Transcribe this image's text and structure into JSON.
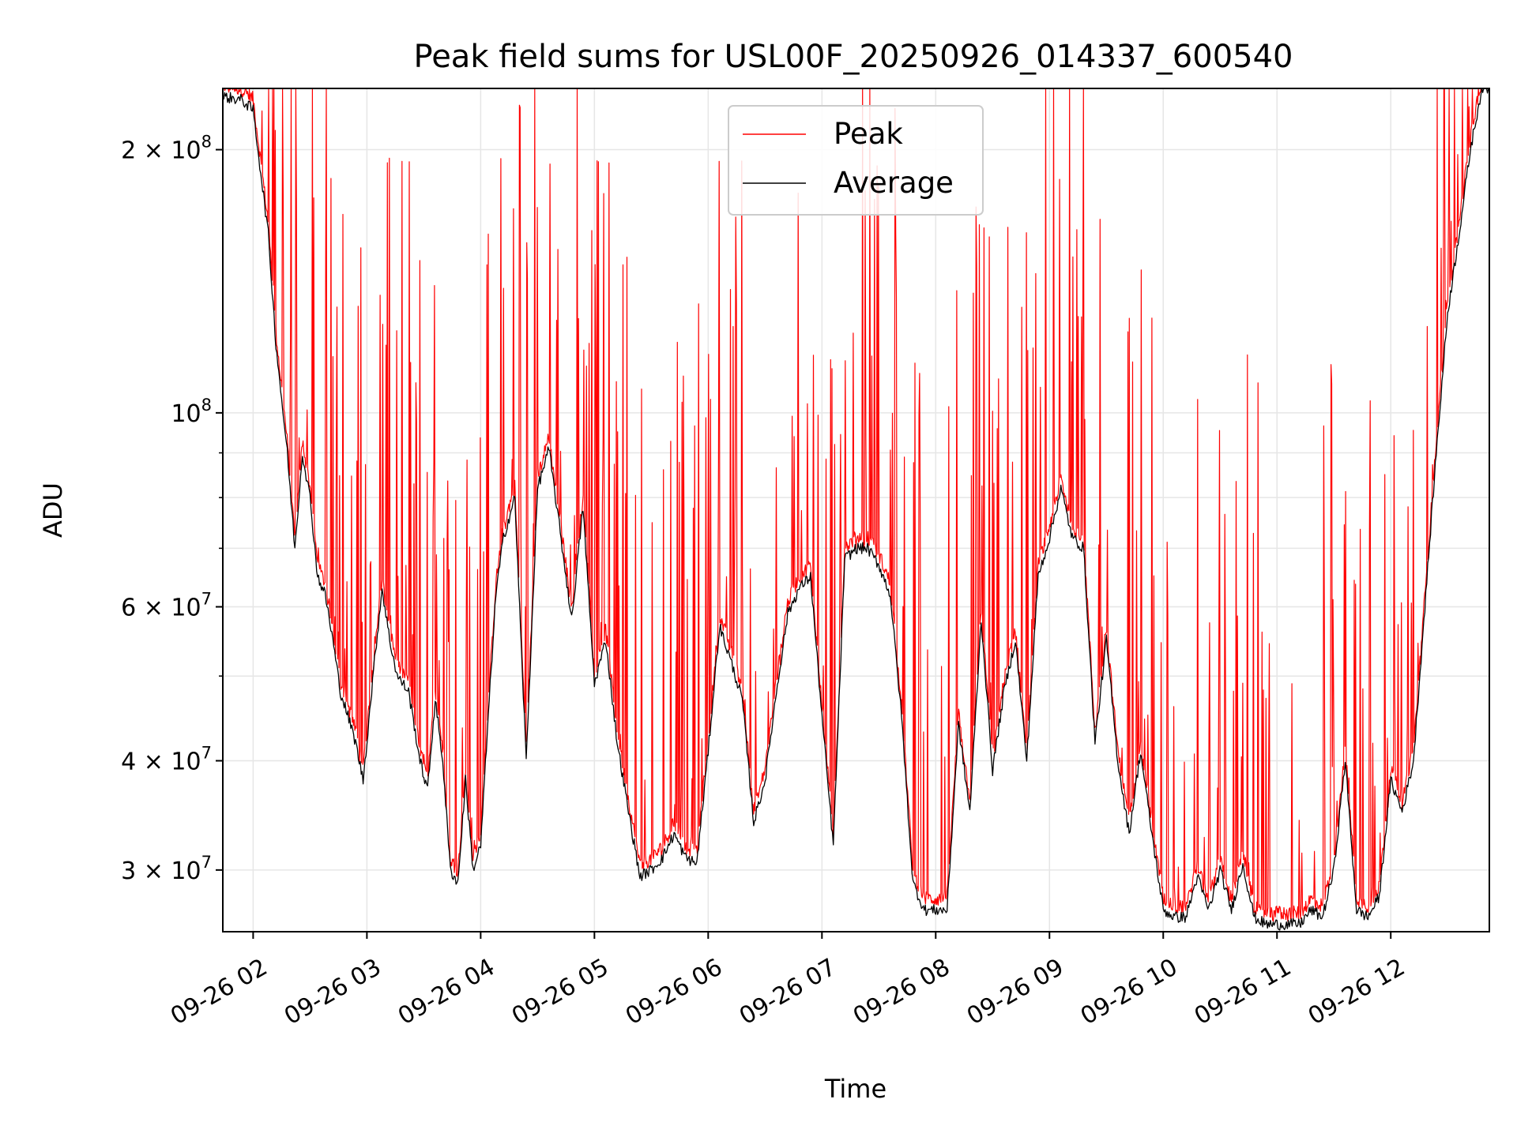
{
  "chart_data": {
    "type": "line",
    "title": "Peak field sums for USL00F_20250926_014337_600540",
    "xlabel": "Time",
    "ylabel": "ADU",
    "y_scale": "log",
    "xlim": [
      "2025-09-26 01:44",
      "2025-09-26 12:52"
    ],
    "ylim": [
      25500000,
      235000000
    ],
    "grid": true,
    "legend_position": "upper center",
    "x_ticks": [
      {
        "value": "2025-09-26 02:00",
        "label": "09-26 02"
      },
      {
        "value": "2025-09-26 03:00",
        "label": "09-26 03"
      },
      {
        "value": "2025-09-26 04:00",
        "label": "09-26 04"
      },
      {
        "value": "2025-09-26 05:00",
        "label": "09-26 05"
      },
      {
        "value": "2025-09-26 06:00",
        "label": "09-26 06"
      },
      {
        "value": "2025-09-26 07:00",
        "label": "09-26 07"
      },
      {
        "value": "2025-09-26 08:00",
        "label": "09-26 08"
      },
      {
        "value": "2025-09-26 09:00",
        "label": "09-26 09"
      },
      {
        "value": "2025-09-26 10:00",
        "label": "09-26 10"
      },
      {
        "value": "2025-09-26 11:00",
        "label": "09-26 11"
      },
      {
        "value": "2025-09-26 12:00",
        "label": "09-26 12"
      }
    ],
    "y_ticks": [
      {
        "value": 200000000,
        "base": "2 × 10",
        "exp": "8"
      },
      {
        "value": 100000000,
        "base": "10",
        "exp": "8"
      },
      {
        "value": 60000000,
        "base": "6 × 10",
        "exp": "7"
      },
      {
        "value": 40000000,
        "base": "4 × 10",
        "exp": "7"
      },
      {
        "value": 30000000,
        "base": "3 × 10",
        "exp": "7"
      }
    ],
    "y_minor_ticks": [
      50000000,
      70000000,
      80000000,
      90000000
    ],
    "series": [
      {
        "name": "Peak",
        "color": "#ff0000",
        "note": "spiky series; baseline tracks Average with frequent spikes up to ~2.3e8"
      },
      {
        "name": "Average",
        "color": "#000000",
        "x": [
          "2025-09-26 01:44",
          "2025-09-26 01:54",
          "2025-09-26 02:00",
          "2025-09-26 02:08",
          "2025-09-26 02:12",
          "2025-09-26 02:18",
          "2025-09-26 02:22",
          "2025-09-26 02:26",
          "2025-09-26 02:30",
          "2025-09-26 02:34",
          "2025-09-26 02:38",
          "2025-09-26 02:42",
          "2025-09-26 02:46",
          "2025-09-26 02:50",
          "2025-09-26 02:54",
          "2025-09-26 02:58",
          "2025-09-26 03:04",
          "2025-09-26 03:08",
          "2025-09-26 03:12",
          "2025-09-26 03:16",
          "2025-09-26 03:22",
          "2025-09-26 03:28",
          "2025-09-26 03:32",
          "2025-09-26 03:36",
          "2025-09-26 03:40",
          "2025-09-26 03:44",
          "2025-09-26 03:48",
          "2025-09-26 03:52",
          "2025-09-26 03:56",
          "2025-09-26 04:00",
          "2025-09-26 04:04",
          "2025-09-26 04:08",
          "2025-09-26 04:12",
          "2025-09-26 04:18",
          "2025-09-26 04:24",
          "2025-09-26 04:30",
          "2025-09-26 04:36",
          "2025-09-26 04:42",
          "2025-09-26 04:48",
          "2025-09-26 04:54",
          "2025-09-26 05:00",
          "2025-09-26 05:06",
          "2025-09-26 05:12",
          "2025-09-26 05:18",
          "2025-09-26 05:24",
          "2025-09-26 05:30",
          "2025-09-26 05:36",
          "2025-09-26 05:42",
          "2025-09-26 05:48",
          "2025-09-26 05:54",
          "2025-09-26 06:00",
          "2025-09-26 06:06",
          "2025-09-26 06:12",
          "2025-09-26 06:18",
          "2025-09-26 06:24",
          "2025-09-26 06:30",
          "2025-09-26 06:36",
          "2025-09-26 06:42",
          "2025-09-26 06:48",
          "2025-09-26 06:54",
          "2025-09-26 07:00",
          "2025-09-26 07:06",
          "2025-09-26 07:12",
          "2025-09-26 07:18",
          "2025-09-26 07:24",
          "2025-09-26 07:30",
          "2025-09-26 07:36",
          "2025-09-26 07:42",
          "2025-09-26 07:48",
          "2025-09-26 07:54",
          "2025-09-26 08:00",
          "2025-09-26 08:06",
          "2025-09-26 08:12",
          "2025-09-26 08:18",
          "2025-09-26 08:24",
          "2025-09-26 08:30",
          "2025-09-26 08:36",
          "2025-09-26 08:42",
          "2025-09-26 08:48",
          "2025-09-26 08:54",
          "2025-09-26 09:00",
          "2025-09-26 09:06",
          "2025-09-26 09:12",
          "2025-09-26 09:18",
          "2025-09-26 09:24",
          "2025-09-26 09:30",
          "2025-09-26 09:36",
          "2025-09-26 09:42",
          "2025-09-26 09:48",
          "2025-09-26 09:54",
          "2025-09-26 10:00",
          "2025-09-26 10:06",
          "2025-09-26 10:12",
          "2025-09-26 10:18",
          "2025-09-26 10:24",
          "2025-09-26 10:30",
          "2025-09-26 10:36",
          "2025-09-26 10:42",
          "2025-09-26 10:48",
          "2025-09-26 10:54",
          "2025-09-26 11:00",
          "2025-09-26 11:06",
          "2025-09-26 11:12",
          "2025-09-26 11:18",
          "2025-09-26 11:24",
          "2025-09-26 11:30",
          "2025-09-26 11:36",
          "2025-09-26 11:42",
          "2025-09-26 11:48",
          "2025-09-26 11:54",
          "2025-09-26 12:00",
          "2025-09-26 12:06",
          "2025-09-26 12:12",
          "2025-09-26 12:18",
          "2025-09-26 12:24",
          "2025-09-26 12:30",
          "2025-09-26 12:36",
          "2025-09-26 12:42",
          "2025-09-26 12:48",
          "2025-09-26 12:52"
        ],
        "values": [
          230000000,
          228000000,
          222000000,
          160000000,
          120000000,
          90000000,
          70000000,
          90000000,
          80000000,
          65000000,
          62000000,
          55000000,
          48000000,
          45000000,
          42000000,
          38000000,
          52000000,
          63000000,
          55000000,
          50000000,
          48000000,
          40000000,
          37000000,
          47000000,
          40000000,
          30000000,
          29000000,
          38000000,
          30000000,
          32000000,
          45000000,
          62000000,
          72000000,
          80000000,
          40000000,
          82000000,
          91000000,
          73000000,
          58000000,
          78000000,
          49000000,
          55000000,
          42000000,
          35000000,
          29500000,
          30000000,
          31000000,
          33000000,
          31000000,
          30500000,
          41000000,
          57000000,
          52000000,
          47000000,
          34000000,
          38000000,
          48000000,
          59000000,
          63000000,
          65000000,
          45000000,
          32000000,
          68000000,
          70000000,
          70000000,
          67000000,
          62000000,
          45000000,
          29000000,
          27000000,
          27000000,
          27000000,
          44000000,
          35000000,
          58000000,
          39000000,
          48000000,
          55000000,
          40000000,
          65000000,
          72000000,
          82000000,
          72000000,
          70000000,
          42000000,
          55000000,
          40000000,
          33000000,
          41000000,
          33000000,
          27000000,
          26500000,
          26500000,
          29500000,
          27000000,
          30000000,
          27000000,
          30500000,
          26500000,
          26000000,
          26000000,
          26000000,
          26000000,
          27000000,
          26500000,
          30000000,
          40000000,
          27000000,
          26500000,
          28000000,
          38000000,
          35000000,
          40000000,
          60000000,
          90000000,
          130000000,
          160000000,
          200000000,
          235000000,
          235000000
        ]
      }
    ]
  }
}
